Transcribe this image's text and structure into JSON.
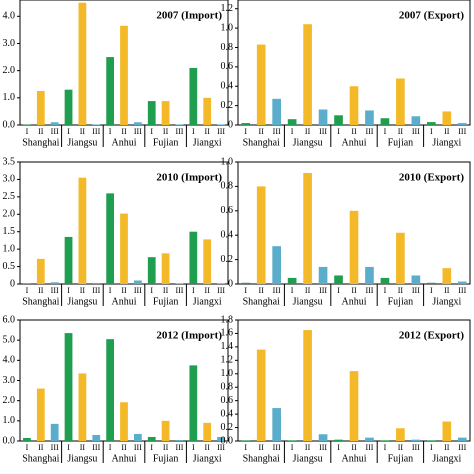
{
  "chart_data": [
    {
      "type": "bar",
      "title": "2007 (Import)",
      "categories": [
        "Shanghai",
        "Jiangsu",
        "Anhui",
        "Fujian",
        "Jiangxi"
      ],
      "series": [
        {
          "name": "I",
          "color": "#1f9e50",
          "values": [
            0.02,
            1.3,
            2.5,
            0.88,
            2.1
          ]
        },
        {
          "name": "II",
          "color": "#f4b928",
          "values": [
            1.25,
            4.5,
            3.65,
            0.88,
            1.0
          ]
        },
        {
          "name": "III",
          "color": "#5aaecb",
          "values": [
            0.1,
            0.02,
            0.1,
            0.02,
            0.02
          ]
        }
      ],
      "ylim": [
        0,
        4.6
      ],
      "yticks": [
        {
          "value": 0,
          "label": "0.0"
        },
        {
          "value": 1,
          "label": "1.0"
        },
        {
          "value": 2,
          "label": "2.0"
        },
        {
          "value": 3,
          "label": "3.0"
        },
        {
          "value": 4,
          "label": "4.0"
        }
      ]
    },
    {
      "type": "bar",
      "title": "2007 (Export)",
      "categories": [
        "Shanghai",
        "Jiangsu",
        "Anhui",
        "Fujian",
        "Jiangxi"
      ],
      "series": [
        {
          "name": "I",
          "color": "#1f9e50",
          "values": [
            0.02,
            0.06,
            0.1,
            0.07,
            0.03
          ]
        },
        {
          "name": "II",
          "color": "#f4b928",
          "values": [
            0.83,
            1.04,
            0.4,
            0.48,
            0.14
          ]
        },
        {
          "name": "III",
          "color": "#5aaecb",
          "values": [
            0.27,
            0.16,
            0.15,
            0.09,
            0.02
          ]
        }
      ],
      "ylim": [
        0,
        1.29
      ],
      "yticks": [
        0,
        0.2,
        0.4,
        0.6,
        0.8,
        {
          "value": 1,
          "label": "1.0"
        },
        1.2
      ]
    },
    {
      "type": "bar",
      "title": "2010 (Import)",
      "categories": [
        "Shanghai",
        "Jiangsu",
        "Anhui",
        "Fujian",
        "Jiangxi"
      ],
      "series": [
        {
          "name": "I",
          "color": "#1f9e50",
          "values": [
            0.02,
            1.35,
            2.6,
            0.77,
            1.5
          ]
        },
        {
          "name": "II",
          "color": "#f4b928",
          "values": [
            0.72,
            3.05,
            2.02,
            0.88,
            1.28
          ]
        },
        {
          "name": "III",
          "color": "#5aaecb",
          "values": [
            0.05,
            0.03,
            0.1,
            0.02,
            0.02
          ]
        }
      ],
      "ylim": [
        0,
        3.5
      ],
      "yticks": [
        0,
        0.5,
        {
          "value": 1,
          "label": "1.0"
        },
        1.5,
        {
          "value": 2,
          "label": "2.0"
        },
        2.5,
        {
          "value": 3,
          "label": "3.0"
        },
        3.5
      ]
    },
    {
      "type": "bar",
      "title": "2010 (Export)",
      "categories": [
        "Shanghai",
        "Jiangsu",
        "Anhui",
        "Fujian",
        "Jiangxi"
      ],
      "series": [
        {
          "name": "I",
          "color": "#1f9e50",
          "values": [
            0.01,
            0.05,
            0.07,
            0.05,
            0.01
          ]
        },
        {
          "name": "II",
          "color": "#f4b928",
          "values": [
            0.8,
            0.91,
            0.6,
            0.42,
            0.13
          ]
        },
        {
          "name": "III",
          "color": "#5aaecb",
          "values": [
            0.31,
            0.14,
            0.14,
            0.07,
            0.02
          ]
        }
      ],
      "ylim": [
        0,
        1.0
      ],
      "yticks": [
        0,
        0.2,
        0.4,
        0.6,
        0.8,
        {
          "value": 1,
          "label": "1.0"
        }
      ]
    },
    {
      "type": "bar",
      "title": "2012 (Import)",
      "categories": [
        "Shanghai",
        "Jiangsu",
        "Anhui",
        "Fujian",
        "Jiangxi"
      ],
      "series": [
        {
          "name": "I",
          "color": "#1f9e50",
          "values": [
            0.15,
            5.35,
            5.05,
            0.2,
            3.75
          ]
        },
        {
          "name": "II",
          "color": "#f4b928",
          "values": [
            2.6,
            3.35,
            1.92,
            1.0,
            0.9
          ]
        },
        {
          "name": "III",
          "color": "#5aaecb",
          "values": [
            0.85,
            0.3,
            0.35,
            0.05,
            0.2
          ]
        }
      ],
      "ylim": [
        0,
        6
      ],
      "yticks": [
        {
          "value": 0,
          "label": "0.0"
        },
        {
          "value": 1,
          "label": "1.0"
        },
        {
          "value": 2,
          "label": "2.0"
        },
        {
          "value": 3,
          "label": "3.0"
        },
        {
          "value": 4,
          "label": "4.0"
        },
        {
          "value": 5,
          "label": "5.0"
        },
        {
          "value": 6,
          "label": "6.0"
        }
      ]
    },
    {
      "type": "bar",
      "title": "2012 (Export)",
      "categories": [
        "Shanghai",
        "Jiangsu",
        "Anhui",
        "Fujian",
        "Jiangxi"
      ],
      "series": [
        {
          "name": "I",
          "color": "#1f9e50",
          "values": [
            0.01,
            0.01,
            0.02,
            0.01,
            0.01
          ]
        },
        {
          "name": "II",
          "color": "#f4b928",
          "values": [
            1.36,
            1.65,
            1.04,
            0.19,
            0.29
          ]
        },
        {
          "name": "III",
          "color": "#5aaecb",
          "values": [
            0.49,
            0.1,
            0.05,
            0.02,
            0.05
          ]
        }
      ],
      "ylim": [
        0,
        1.8
      ],
      "yticks": [
        {
          "value": 0,
          "label": "0.0"
        },
        0.2,
        0.4,
        0.6,
        0.8,
        {
          "value": 1,
          "label": "1.0"
        },
        1.2,
        1.4,
        1.6,
        1.8
      ]
    }
  ]
}
